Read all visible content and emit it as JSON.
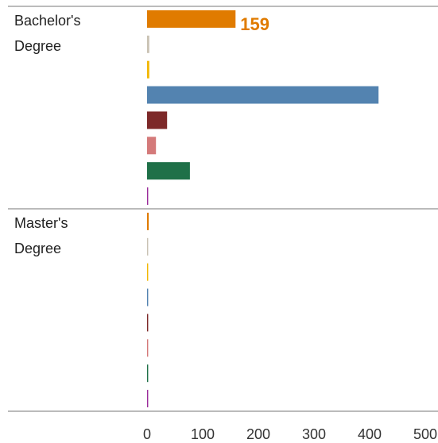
{
  "chart_data": {
    "type": "bar",
    "orientation": "horizontal",
    "categories": [
      "Bachelor's Degree",
      "Master's Degree"
    ],
    "series": [
      {
        "color": "#e07b00",
        "values": [
          159,
          3
        ],
        "value_labels": [
          "159",
          null
        ]
      },
      {
        "color": "#c9c2b4",
        "values": [
          4,
          2
        ]
      },
      {
        "color": "#f2b705",
        "values": [
          4,
          2
        ]
      },
      {
        "color": "#5383b0",
        "values": [
          416,
          2
        ]
      },
      {
        "color": "#7d2929",
        "values": [
          36,
          2
        ]
      },
      {
        "color": "#d47a7a",
        "values": [
          16,
          2
        ]
      },
      {
        "color": "#1f7048",
        "values": [
          77,
          2
        ]
      },
      {
        "color": "#9b2c9b",
        "values": [
          2,
          2
        ]
      }
    ],
    "xlim": [
      0,
      520
    ],
    "xticks": [
      0,
      100,
      200,
      300,
      400,
      500
    ],
    "grid": false
  }
}
